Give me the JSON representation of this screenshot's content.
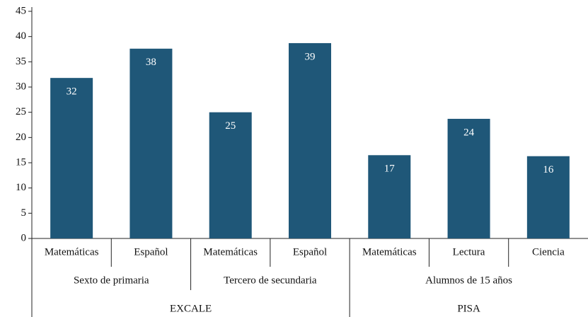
{
  "chart_data": {
    "type": "bar",
    "groups": [
      {
        "name": "EXCALE",
        "subgroups": [
          {
            "name": "Sexto de primaria",
            "categories": [
              "Matemáticas",
              "Español"
            ]
          },
          {
            "name": "Tercero de secundaria",
            "categories": [
              "Matemáticas",
              "Español"
            ]
          }
        ]
      },
      {
        "name": "PISA",
        "subgroups": [
          {
            "name": "Alumnos de 15 años",
            "categories": [
              "Matemáticas",
              "Lectura",
              "Ciencia"
            ]
          }
        ]
      }
    ],
    "values": [
      31.8,
      37.6,
      25,
      38.7,
      16.5,
      23.7,
      16.3
    ],
    "value_labels": [
      "32",
      "38",
      "25",
      "39",
      "17",
      "24",
      "16"
    ],
    "color": "#1f5778",
    "ylim": [
      0,
      45
    ],
    "yticks": [
      0,
      5,
      10,
      15,
      20,
      25,
      30,
      35,
      40,
      45
    ]
  }
}
